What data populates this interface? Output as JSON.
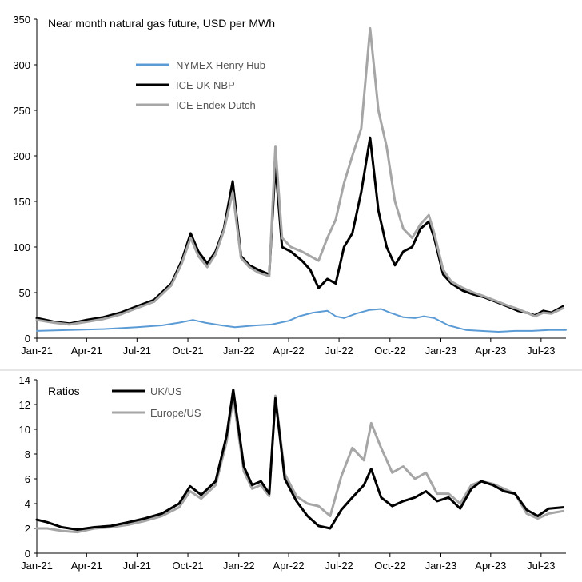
{
  "chart_data": [
    {
      "type": "line",
      "title": "Near month natural gas future, USD per MWh",
      "x_tick_labels": [
        "Jan-21",
        "Apr-21",
        "Jul-21",
        "Oct-21",
        "Jan-22",
        "Apr-22",
        "Jul-22",
        "Oct-22",
        "Jan-23",
        "Apr-23",
        "Jul-23"
      ],
      "y_tick_labels": [
        "0",
        "50",
        "100",
        "150",
        "200",
        "250",
        "300",
        "350"
      ],
      "ylim": [
        0,
        350
      ],
      "x_range": [
        "2021-01-01",
        "2023-08-15"
      ],
      "grid": false,
      "legend_placement": "upper-left",
      "series": [
        {
          "name": "NYMEX Henry Hub",
          "color": "#5B9BD5",
          "x": [
            "2021-01-01",
            "2021-03-01",
            "2021-05-01",
            "2021-07-01",
            "2021-08-15",
            "2021-09-15",
            "2021-10-10",
            "2021-11-01",
            "2021-12-01",
            "2021-12-25",
            "2022-02-01",
            "2022-03-01",
            "2022-04-01",
            "2022-04-20",
            "2022-05-15",
            "2022-06-10",
            "2022-06-25",
            "2022-07-10",
            "2022-08-01",
            "2022-08-25",
            "2022-09-15",
            "2022-10-01",
            "2022-10-25",
            "2022-11-15",
            "2022-12-01",
            "2022-12-20",
            "2023-01-15",
            "2023-02-15",
            "2023-03-15",
            "2023-04-15",
            "2023-05-15",
            "2023-06-15",
            "2023-07-15",
            "2023-08-15"
          ],
          "y": [
            8,
            9,
            10,
            12,
            14,
            17,
            20,
            17,
            14,
            12,
            14,
            15,
            19,
            24,
            28,
            30,
            24,
            22,
            27,
            31,
            32,
            28,
            23,
            22,
            24,
            22,
            14,
            9,
            8,
            7,
            8,
            8,
            9,
            9
          ]
        },
        {
          "name": "ICE UK NBP",
          "color": "#000000",
          "x": [
            "2021-01-01",
            "2021-02-01",
            "2021-03-01",
            "2021-04-01",
            "2021-05-01",
            "2021-06-01",
            "2021-07-01",
            "2021-08-01",
            "2021-09-01",
            "2021-09-20",
            "2021-10-06",
            "2021-10-20",
            "2021-11-05",
            "2021-11-20",
            "2021-12-05",
            "2021-12-21",
            "2022-01-05",
            "2022-01-20",
            "2022-02-05",
            "2022-02-25",
            "2022-03-08",
            "2022-03-20",
            "2022-04-05",
            "2022-04-25",
            "2022-05-10",
            "2022-05-25",
            "2022-06-10",
            "2022-06-25",
            "2022-07-10",
            "2022-07-25",
            "2022-08-10",
            "2022-08-26",
            "2022-09-10",
            "2022-09-25",
            "2022-10-10",
            "2022-10-25",
            "2022-11-10",
            "2022-11-25",
            "2022-12-10",
            "2022-12-20",
            "2023-01-05",
            "2023-01-20",
            "2023-02-10",
            "2023-03-01",
            "2023-03-20",
            "2023-04-10",
            "2023-05-01",
            "2023-05-20",
            "2023-06-05",
            "2023-06-20",
            "2023-07-05",
            "2023-07-20",
            "2023-08-10"
          ],
          "y": [
            22,
            18,
            16,
            20,
            23,
            28,
            35,
            42,
            60,
            85,
            115,
            95,
            82,
            95,
            120,
            172,
            90,
            80,
            75,
            70,
            190,
            100,
            95,
            85,
            75,
            55,
            65,
            60,
            100,
            115,
            160,
            220,
            140,
            100,
            80,
            95,
            100,
            120,
            128,
            110,
            70,
            60,
            52,
            48,
            45,
            40,
            35,
            30,
            28,
            25,
            30,
            28,
            35
          ]
        },
        {
          "name": "ICE Endex Dutch",
          "color": "#A6A6A6",
          "x": [
            "2021-01-01",
            "2021-02-01",
            "2021-03-01",
            "2021-04-01",
            "2021-05-01",
            "2021-06-01",
            "2021-07-01",
            "2021-08-01",
            "2021-09-01",
            "2021-09-20",
            "2021-10-06",
            "2021-10-20",
            "2021-11-05",
            "2021-11-20",
            "2021-12-05",
            "2021-12-21",
            "2022-01-05",
            "2022-01-20",
            "2022-02-05",
            "2022-02-25",
            "2022-03-08",
            "2022-03-20",
            "2022-04-05",
            "2022-04-25",
            "2022-05-10",
            "2022-05-25",
            "2022-06-10",
            "2022-06-25",
            "2022-07-10",
            "2022-07-25",
            "2022-08-10",
            "2022-08-26",
            "2022-09-10",
            "2022-09-25",
            "2022-10-10",
            "2022-10-25",
            "2022-11-10",
            "2022-11-25",
            "2022-12-10",
            "2022-12-20",
            "2023-01-05",
            "2023-01-20",
            "2023-02-10",
            "2023-03-01",
            "2023-03-20",
            "2023-04-10",
            "2023-05-01",
            "2023-05-20",
            "2023-06-05",
            "2023-06-20",
            "2023-07-05",
            "2023-07-20",
            "2023-08-10"
          ],
          "y": [
            20,
            17,
            15,
            18,
            21,
            26,
            33,
            40,
            58,
            82,
            110,
            90,
            78,
            92,
            118,
            160,
            88,
            78,
            72,
            68,
            210,
            110,
            100,
            95,
            90,
            85,
            110,
            130,
            170,
            200,
            230,
            340,
            250,
            210,
            150,
            120,
            110,
            125,
            135,
            115,
            75,
            62,
            55,
            50,
            46,
            41,
            36,
            32,
            28,
            24,
            28,
            27,
            33
          ]
        }
      ]
    },
    {
      "type": "line",
      "title": "Ratios",
      "x_tick_labels": [
        "Jan-21",
        "Apr-21",
        "Jul-21",
        "Oct-21",
        "Jan-22",
        "Apr-22",
        "Jul-22",
        "Oct-22",
        "Jan-23",
        "Apr-23",
        "Jul-23"
      ],
      "y_tick_labels": [
        "0",
        "2",
        "4",
        "6",
        "8",
        "10",
        "12",
        "14"
      ],
      "ylim": [
        0,
        14
      ],
      "x_range": [
        "2021-01-01",
        "2023-08-15"
      ],
      "grid": false,
      "legend_placement": "upper-left",
      "series": [
        {
          "name": "UK/US",
          "color": "#000000",
          "x": [
            "2021-01-01",
            "2021-01-20",
            "2021-02-15",
            "2021-03-15",
            "2021-04-15",
            "2021-05-15",
            "2021-06-15",
            "2021-07-15",
            "2021-08-15",
            "2021-09-15",
            "2021-10-05",
            "2021-10-25",
            "2021-11-20",
            "2021-12-10",
            "2021-12-22",
            "2022-01-10",
            "2022-01-25",
            "2022-02-10",
            "2022-02-25",
            "2022-03-08",
            "2022-03-25",
            "2022-04-15",
            "2022-05-05",
            "2022-05-25",
            "2022-06-15",
            "2022-07-05",
            "2022-07-25",
            "2022-08-15",
            "2022-08-28",
            "2022-09-15",
            "2022-10-05",
            "2022-10-25",
            "2022-11-15",
            "2022-12-05",
            "2022-12-25",
            "2023-01-15",
            "2023-02-05",
            "2023-02-25",
            "2023-03-15",
            "2023-04-05",
            "2023-04-25",
            "2023-05-15",
            "2023-06-05",
            "2023-06-25",
            "2023-07-15",
            "2023-08-10"
          ],
          "y": [
            2.7,
            2.5,
            2.1,
            1.9,
            2.1,
            2.2,
            2.5,
            2.8,
            3.2,
            4.0,
            5.4,
            4.7,
            5.8,
            9.5,
            13.2,
            7.0,
            5.5,
            5.8,
            4.8,
            12.5,
            6.0,
            4.2,
            3.0,
            2.2,
            2.0,
            3.5,
            4.5,
            5.5,
            6.8,
            4.5,
            3.8,
            4.2,
            4.5,
            5.0,
            4.2,
            4.5,
            3.6,
            5.2,
            5.8,
            5.5,
            5.0,
            4.8,
            3.5,
            3.0,
            3.6,
            3.7
          ]
        },
        {
          "name": "Europe/US",
          "color": "#A6A6A6",
          "x": [
            "2021-01-01",
            "2021-01-20",
            "2021-02-15",
            "2021-03-15",
            "2021-04-15",
            "2021-05-15",
            "2021-06-15",
            "2021-07-15",
            "2021-08-15",
            "2021-09-15",
            "2021-10-05",
            "2021-10-25",
            "2021-11-20",
            "2021-12-10",
            "2021-12-22",
            "2022-01-10",
            "2022-01-25",
            "2022-02-10",
            "2022-02-25",
            "2022-03-08",
            "2022-03-25",
            "2022-04-15",
            "2022-05-05",
            "2022-05-25",
            "2022-06-15",
            "2022-07-05",
            "2022-07-25",
            "2022-08-15",
            "2022-08-28",
            "2022-09-15",
            "2022-10-05",
            "2022-10-25",
            "2022-11-15",
            "2022-12-05",
            "2022-12-25",
            "2023-01-15",
            "2023-02-05",
            "2023-02-25",
            "2023-03-15",
            "2023-04-05",
            "2023-04-25",
            "2023-05-15",
            "2023-06-05",
            "2023-06-25",
            "2023-07-15",
            "2023-08-10"
          ],
          "y": [
            2.0,
            2.0,
            1.8,
            1.7,
            2.0,
            2.1,
            2.3,
            2.6,
            3.0,
            3.7,
            5.0,
            4.4,
            5.5,
            9.0,
            12.6,
            6.6,
            5.2,
            5.5,
            4.6,
            12.7,
            6.4,
            4.6,
            4.0,
            3.8,
            3.0,
            6.2,
            8.5,
            7.5,
            10.5,
            8.5,
            6.5,
            7.0,
            6.0,
            6.5,
            4.8,
            4.8,
            4.0,
            5.5,
            5.8,
            5.6,
            5.2,
            4.8,
            3.2,
            2.8,
            3.2,
            3.4
          ]
        }
      ]
    }
  ]
}
